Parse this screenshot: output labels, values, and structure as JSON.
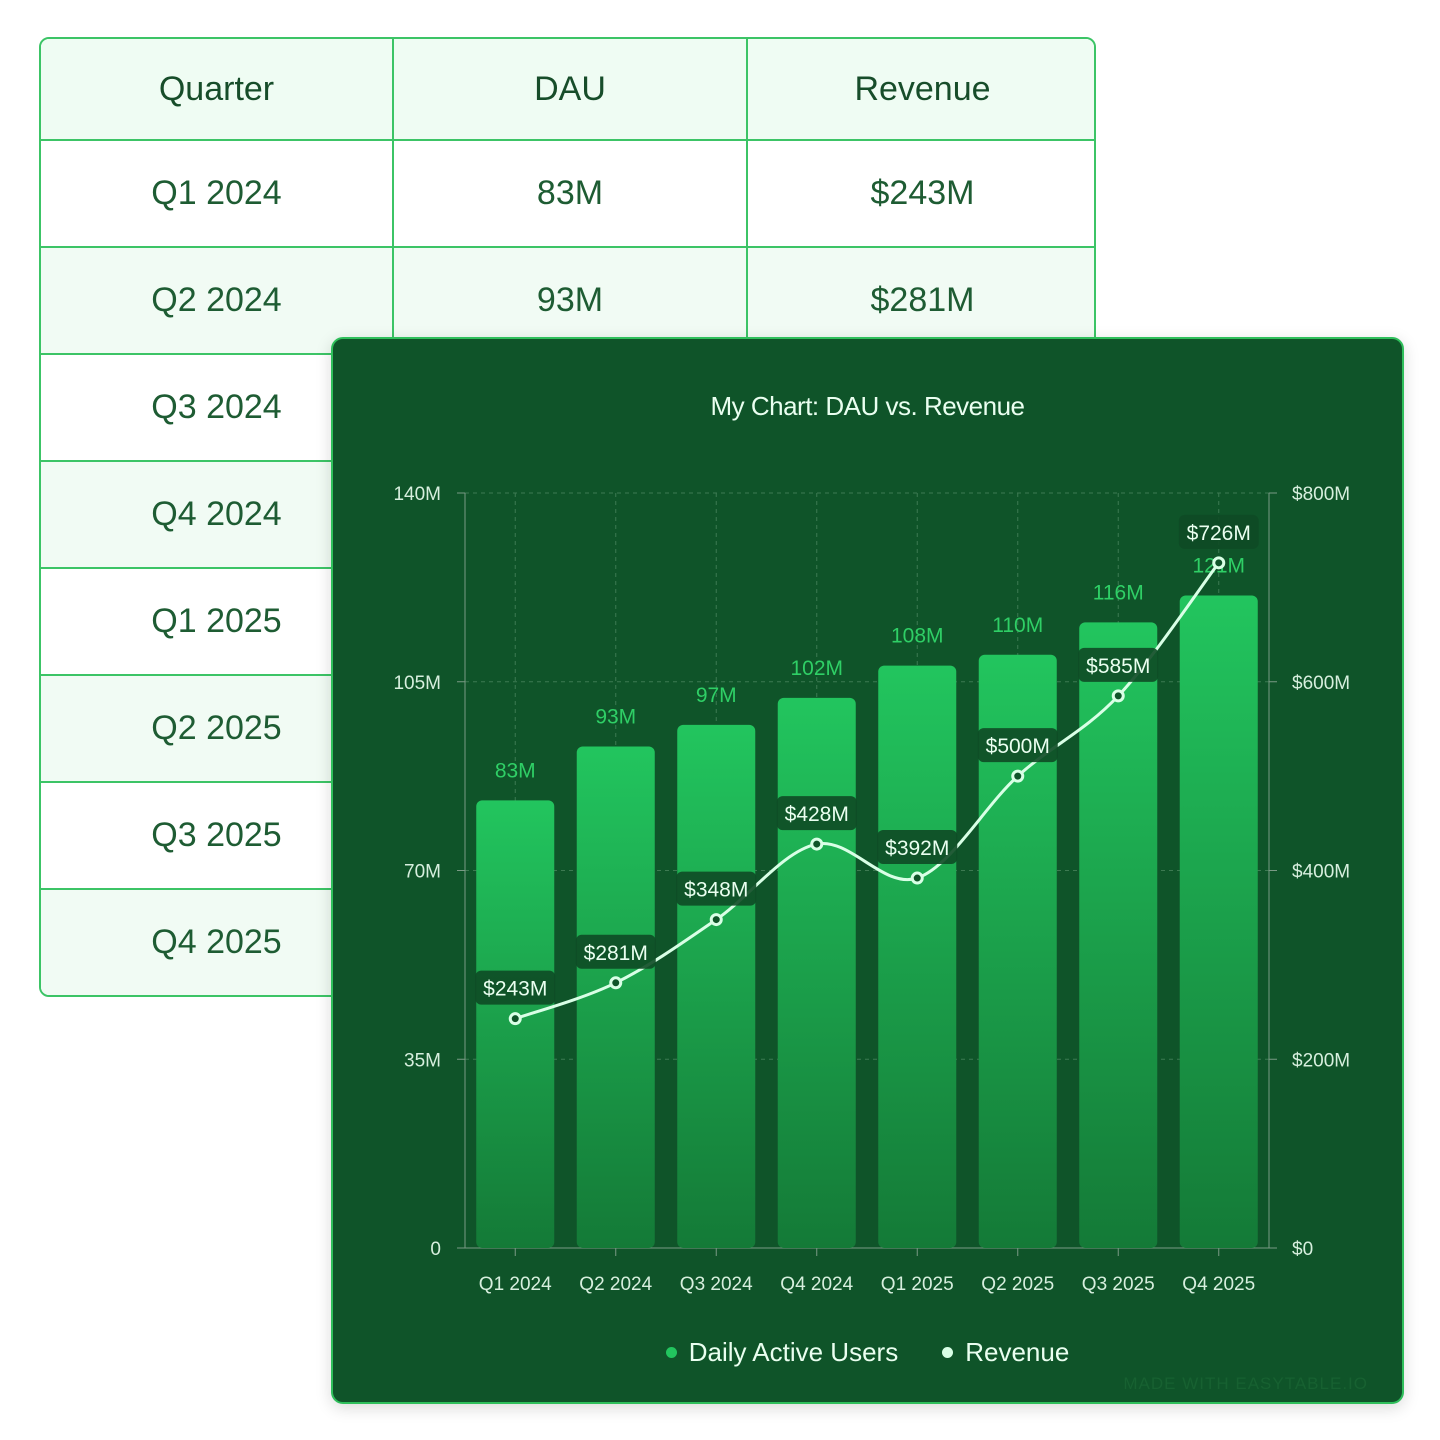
{
  "table": {
    "headers": [
      "Quarter",
      "DAU",
      "Revenue"
    ],
    "rows": [
      {
        "quarter": "Q1 2024",
        "dau": "83M",
        "revenue": "$243M"
      },
      {
        "quarter": "Q2 2024",
        "dau": "93M",
        "revenue": "$281M"
      },
      {
        "quarter": "Q3 2024"
      },
      {
        "quarter": "Q4 2024"
      },
      {
        "quarter": "Q1 2025"
      },
      {
        "quarter": "Q2 2025"
      },
      {
        "quarter": "Q3 2025"
      },
      {
        "quarter": "Q4 2025"
      }
    ]
  },
  "chart_data": {
    "type": "bar+line",
    "title": "My Chart: DAU vs. Revenue",
    "categories": [
      "Q1 2024",
      "Q2 2024",
      "Q3 2024",
      "Q4 2024",
      "Q1 2025",
      "Q2 2025",
      "Q3 2025",
      "Q4 2025"
    ],
    "series": [
      {
        "name": "Daily Active Users",
        "type": "bar",
        "axis": "left",
        "values": [
          83,
          93,
          97,
          102,
          108,
          110,
          116,
          121
        ],
        "labels": [
          "83M",
          "93M",
          "97M",
          "102M",
          "108M",
          "110M",
          "116M",
          "121M"
        ],
        "color": "#22c55e"
      },
      {
        "name": "Revenue",
        "type": "line",
        "axis": "right",
        "values": [
          243,
          281,
          348,
          428,
          392,
          500,
          585,
          726
        ],
        "labels": [
          "$243M",
          "$281M",
          "$348M",
          "$428M",
          "$392M",
          "$500M",
          "$585M",
          "$726M"
        ],
        "color": "#d9ffe6"
      }
    ],
    "y_left": {
      "range": [
        0,
        140
      ],
      "ticks": [
        "0",
        "35M",
        "70M",
        "105M",
        "140M"
      ]
    },
    "y_right": {
      "range": [
        0,
        800
      ],
      "ticks": [
        "$0",
        "$200M",
        "$400M",
        "$600M",
        "$800M"
      ]
    },
    "grid": true,
    "legend": "bottom"
  },
  "watermark": "MADE WITH EASYTABLE.IO",
  "colors": {
    "card_bg": "#0f5429",
    "accent": "#22c55e",
    "table_border": "#3cc466"
  }
}
